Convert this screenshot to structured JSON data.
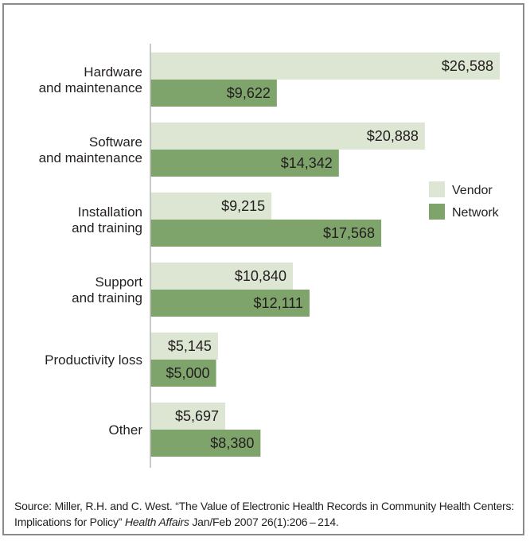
{
  "chart_data": {
    "type": "bar",
    "orientation": "horizontal",
    "categories": [
      [
        "Hardware",
        "and maintenance"
      ],
      [
        "Software",
        "and maintenance"
      ],
      [
        "Installation",
        "and training"
      ],
      [
        "Support",
        "and training"
      ],
      [
        "Productivity loss"
      ],
      [
        "Other"
      ]
    ],
    "series": [
      {
        "name": "Vendor",
        "color": "#dce6d3",
        "values": [
          26588,
          20888,
          9215,
          10840,
          5145,
          5697
        ],
        "labels": [
          "$26,588",
          "$20,888",
          "$9,215",
          "$10,840",
          "$5,145",
          "$5,697"
        ]
      },
      {
        "name": "Network",
        "color": "#7ea36b",
        "values": [
          9622,
          14342,
          17568,
          12111,
          5000,
          8380
        ],
        "labels": [
          "$9,622",
          "$14,342",
          "$17,568",
          "$12,111",
          "$5,000",
          "$8,380"
        ]
      }
    ],
    "legend_position": "right",
    "xlim": [
      0,
      27000
    ],
    "grid": false
  },
  "source": {
    "prefix": "Source: Miller, R.H. and C. West. “The Value of Electronic Health Records in Community Health Centers: Implications for Policy” ",
    "journal": "Health Affairs",
    "suffix": " Jan/Feb 2007 26(1):206 – 214."
  }
}
